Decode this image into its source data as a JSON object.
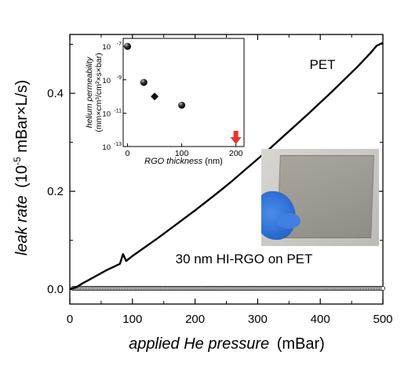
{
  "chart_data": [
    {
      "id": "main",
      "type": "line",
      "xlabel_italic": "applied He pressure",
      "xlabel_unit": "(mBar)",
      "ylabel_italic": "leak rate",
      "ylabel_unit_pre": "(10",
      "ylabel_unit_sup": "-5",
      "ylabel_unit_post": " mBar×L/s)",
      "xlim": [
        0,
        500
      ],
      "ylim": [
        -0.03,
        0.52
      ],
      "x_ticks": [
        0,
        100,
        200,
        300,
        400,
        500
      ],
      "x_tick_labels": [
        "0",
        "100",
        "200",
        "300",
        "400",
        "500"
      ],
      "y_ticks": [
        0.0,
        0.2,
        0.4
      ],
      "y_tick_labels": [
        "0.0",
        "0.2",
        "0.4"
      ],
      "series": [
        {
          "name": "PET",
          "style": "line",
          "color": "#000000",
          "x": [
            0,
            10,
            20,
            30,
            40,
            50,
            60,
            70,
            80,
            85,
            90,
            100,
            120,
            140,
            160,
            180,
            200,
            220,
            240,
            260,
            280,
            300,
            320,
            340,
            360,
            380,
            400,
            420,
            440,
            460,
            480,
            490,
            500
          ],
          "y": [
            0.0,
            0.004,
            0.012,
            0.019,
            0.026,
            0.033,
            0.04,
            0.046,
            0.052,
            0.072,
            0.058,
            0.068,
            0.086,
            0.104,
            0.123,
            0.142,
            0.161,
            0.181,
            0.201,
            0.222,
            0.244,
            0.266,
            0.288,
            0.311,
            0.334,
            0.357,
            0.381,
            0.405,
            0.43,
            0.455,
            0.482,
            0.497,
            0.503
          ]
        },
        {
          "name": "30 nm HI-RGO  on PET",
          "style": "open-circles",
          "color": "#000000",
          "x_start": 5,
          "x_end": 500,
          "x_step": 2.5,
          "y": 0.002
        }
      ],
      "annotations": [
        "PET",
        "30 nm HI-RGO  on PET"
      ]
    },
    {
      "id": "inset",
      "type": "scatter",
      "xlabel_italic": "RGO thickness",
      "xlabel_unit": " (nm)",
      "ylabel_line1": "helium permeability",
      "ylabel_line2": "(mm×cm³/cm²×s×bar)",
      "log_y": true,
      "xlim": [
        -8,
        215
      ],
      "ylim": [
        1e-13,
        3e-07
      ],
      "x_ticks": [
        0,
        100,
        200
      ],
      "x_tick_labels": [
        "0",
        "100",
        "200"
      ],
      "y_ticks": [
        1e-13,
        1e-11,
        1e-09,
        1e-07
      ],
      "y_tick_labels_base": [
        "10",
        "10",
        "10",
        "10"
      ],
      "y_tick_labels_exp": [
        "-13",
        "-11",
        "-9",
        "-7"
      ],
      "points": [
        {
          "x": 0,
          "y": 1e-07,
          "marker": "sphere"
        },
        {
          "x": 30,
          "y": 7e-10,
          "marker": "sphere"
        },
        {
          "x": 50,
          "y": 1e-10,
          "marker": "diamond"
        },
        {
          "x": 100,
          "y": 3e-11,
          "marker": "sphere"
        }
      ],
      "arrow_x": 200,
      "arrow_color": "#e8342a"
    }
  ]
}
